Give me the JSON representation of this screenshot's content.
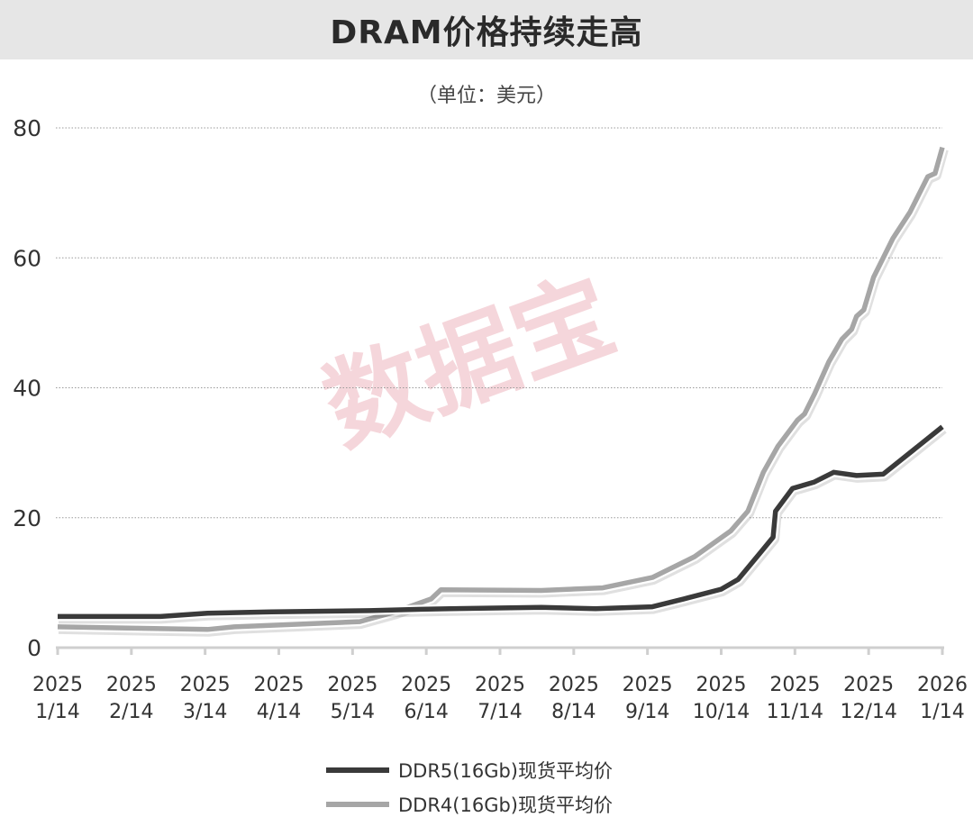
{
  "chart_data": {
    "type": "line",
    "title": "DRAM价格持续走高",
    "subtitle": "（单位：美元）",
    "watermark": "数据宝",
    "xlabel": "",
    "ylabel": "",
    "ylim": [
      0,
      80
    ],
    "yticks": [
      "0",
      "20",
      "40",
      "60",
      "80"
    ],
    "ytick_values": [
      0,
      20,
      40,
      60,
      80
    ],
    "grid": "horizontal dotted",
    "legend_placement": "bottom",
    "xticks": [
      {
        "year": "2025",
        "md": "1/14",
        "date": "2025-01-14"
      },
      {
        "year": "2025",
        "md": "2/14",
        "date": "2025-02-14"
      },
      {
        "year": "2025",
        "md": "3/14",
        "date": "2025-03-14"
      },
      {
        "year": "2025",
        "md": "4/14",
        "date": "2025-04-14"
      },
      {
        "year": "2025",
        "md": "5/14",
        "date": "2025-05-14"
      },
      {
        "year": "2025",
        "md": "6/14",
        "date": "2025-06-14"
      },
      {
        "year": "2025",
        "md": "7/14",
        "date": "2025-07-14"
      },
      {
        "year": "2025",
        "md": "8/14",
        "date": "2025-08-14"
      },
      {
        "year": "2025",
        "md": "9/14",
        "date": "2025-09-14"
      },
      {
        "year": "2025",
        "md": "10/14",
        "date": "2025-10-14"
      },
      {
        "year": "2025",
        "md": "11/14",
        "date": "2025-11-14"
      },
      {
        "year": "2025",
        "md": "12/14",
        "date": "2025-12-14"
      },
      {
        "year": "2026",
        "md": "1/14",
        "date": "2026-01-14"
      }
    ],
    "series": [
      {
        "name": "DDR5(16Gb)现货平均价",
        "color": "#3a3a3a",
        "points": [
          [
            "2025-01-14",
            4.8
          ],
          [
            "2025-02-26",
            4.8
          ],
          [
            "2025-03-15",
            5.3
          ],
          [
            "2025-04-11",
            5.5
          ],
          [
            "2025-05-21",
            5.7
          ],
          [
            "2025-06-12",
            5.9
          ],
          [
            "2025-06-24",
            6.0
          ],
          [
            "2025-07-31",
            6.2
          ],
          [
            "2025-08-23",
            6.0
          ],
          [
            "2025-09-16",
            6.3
          ],
          [
            "2025-09-29",
            7.5
          ],
          [
            "2025-10-14",
            9.0
          ],
          [
            "2025-10-21",
            10.5
          ],
          [
            "2025-10-31",
            15.0
          ],
          [
            "2025-11-05",
            17.0
          ],
          [
            "2025-11-06",
            21.0
          ],
          [
            "2025-11-13",
            24.5
          ],
          [
            "2025-11-22",
            25.5
          ],
          [
            "2025-11-30",
            27.0
          ],
          [
            "2025-12-09",
            26.5
          ],
          [
            "2025-12-20",
            26.7
          ],
          [
            "2026-01-04",
            31.0
          ],
          [
            "2026-01-14",
            34.0
          ]
        ]
      },
      {
        "name": "DDR4(16Gb)现货平均价",
        "color": "#a6a6a6",
        "points": [
          [
            "2025-01-14",
            3.2
          ],
          [
            "2025-03-15",
            2.8
          ],
          [
            "2025-03-26",
            3.2
          ],
          [
            "2025-05-17",
            4.0
          ],
          [
            "2025-06-01",
            5.5
          ],
          [
            "2025-06-16",
            7.5
          ],
          [
            "2025-06-20",
            8.9
          ],
          [
            "2025-07-31",
            8.8
          ],
          [
            "2025-08-26",
            9.2
          ],
          [
            "2025-09-16",
            10.8
          ],
          [
            "2025-10-03",
            14.0
          ],
          [
            "2025-10-18",
            18.0
          ],
          [
            "2025-10-25",
            21.0
          ],
          [
            "2025-11-01",
            27.0
          ],
          [
            "2025-11-07",
            31.0
          ],
          [
            "2025-11-15",
            35.0
          ],
          [
            "2025-11-18",
            36.0
          ],
          [
            "2025-11-22",
            39.0
          ],
          [
            "2025-11-28",
            44.0
          ],
          [
            "2025-12-03",
            47.5
          ],
          [
            "2025-12-07",
            49.0
          ],
          [
            "2025-12-09",
            51.0
          ],
          [
            "2025-12-12",
            52.0
          ],
          [
            "2025-12-16",
            57.0
          ],
          [
            "2025-12-24",
            63.0
          ],
          [
            "2025-12-31",
            67.0
          ],
          [
            "2026-01-08",
            72.5
          ],
          [
            "2026-01-11",
            73.0
          ],
          [
            "2026-01-14",
            77.0
          ]
        ]
      }
    ]
  }
}
